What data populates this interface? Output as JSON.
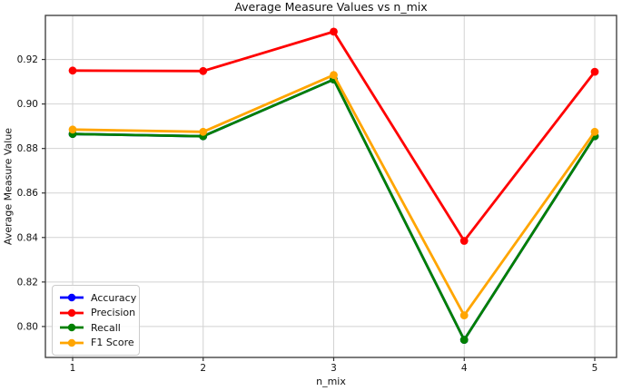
{
  "chart_data": {
    "type": "line",
    "title": "Average Measure Values vs n_mix",
    "xlabel": "n_mix",
    "ylabel": "Average Measure Value",
    "x": [
      1,
      2,
      3,
      4,
      5
    ],
    "series": [
      {
        "name": "Accuracy",
        "color": "#0000ff",
        "values": [
          0.8865,
          0.8855,
          0.911,
          0.794,
          0.8855
        ]
      },
      {
        "name": "Precision",
        "color": "#ff0000",
        "values": [
          0.915,
          0.9148,
          0.9325,
          0.8385,
          0.9145
        ]
      },
      {
        "name": "Recall",
        "color": "#008000",
        "values": [
          0.8865,
          0.8855,
          0.911,
          0.794,
          0.8855
        ]
      },
      {
        "name": "F1 Score",
        "color": "#ffa500",
        "values": [
          0.8885,
          0.8875,
          0.913,
          0.805,
          0.8875
        ]
      }
    ],
    "xticks": [
      1,
      2,
      3,
      4,
      5
    ],
    "yticks": [
      0.8,
      0.82,
      0.84,
      0.86,
      0.88,
      0.9,
      0.92
    ],
    "xlim": [
      0.7913,
      5.167
    ],
    "ylim": [
      0.7861,
      0.9398
    ],
    "grid": true,
    "legend_position": "lower left",
    "legend_entries": [
      "Accuracy",
      "Precision",
      "Recall",
      "F1 Score"
    ],
    "colors": {
      "grid": "#d2d2d2",
      "spine": "#454545",
      "tick": "#333333",
      "text": "#111111",
      "background": "#ffffff"
    }
  }
}
